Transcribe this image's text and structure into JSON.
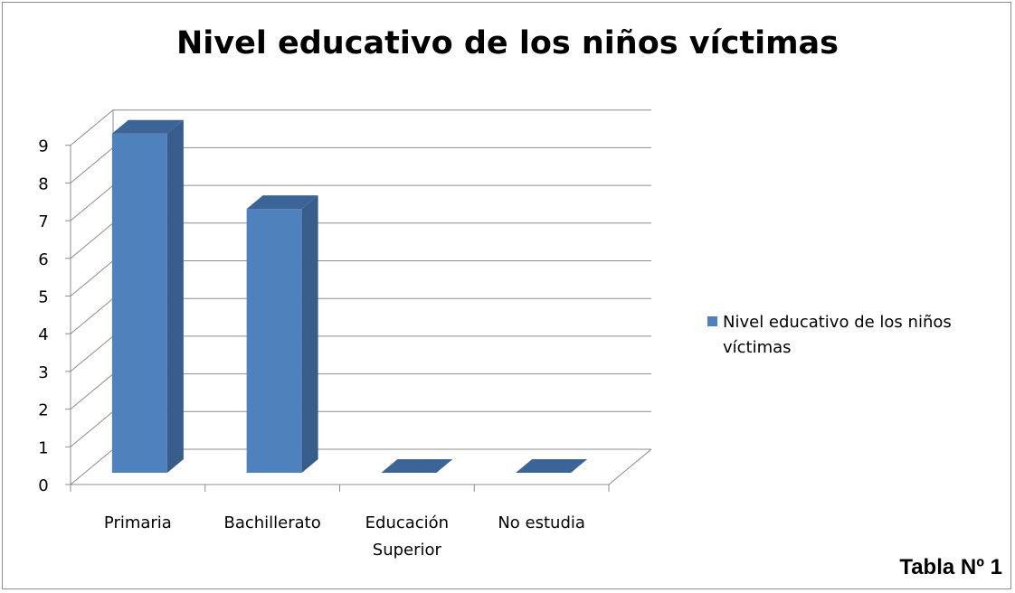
{
  "chart_data": {
    "type": "bar",
    "title": "Nivel educativo de los niños víctimas",
    "categories": [
      "Primaria",
      "Bachillerato",
      "Educación Superior",
      "No estudia"
    ],
    "category_lines": [
      [
        "Primaria"
      ],
      [
        "Bachillerato"
      ],
      [
        "Educación",
        "Superior"
      ],
      [
        "No estudia"
      ]
    ],
    "series": [
      {
        "name": "Nivel educativo de los niños víctimas",
        "values": [
          9,
          7,
          0,
          0
        ]
      }
    ],
    "ylim": [
      0,
      9
    ],
    "yticks": [
      "0",
      "1",
      "2",
      "3",
      "4",
      "5",
      "6",
      "7",
      "8",
      "9"
    ],
    "grid": true,
    "legend": "right",
    "three_d": true,
    "colors": {
      "front": "#4f81bd",
      "side": "#385d8a",
      "top": "#3c6497",
      "grid": "#8c8c8c"
    }
  },
  "caption": "Tabla Nº  1"
}
